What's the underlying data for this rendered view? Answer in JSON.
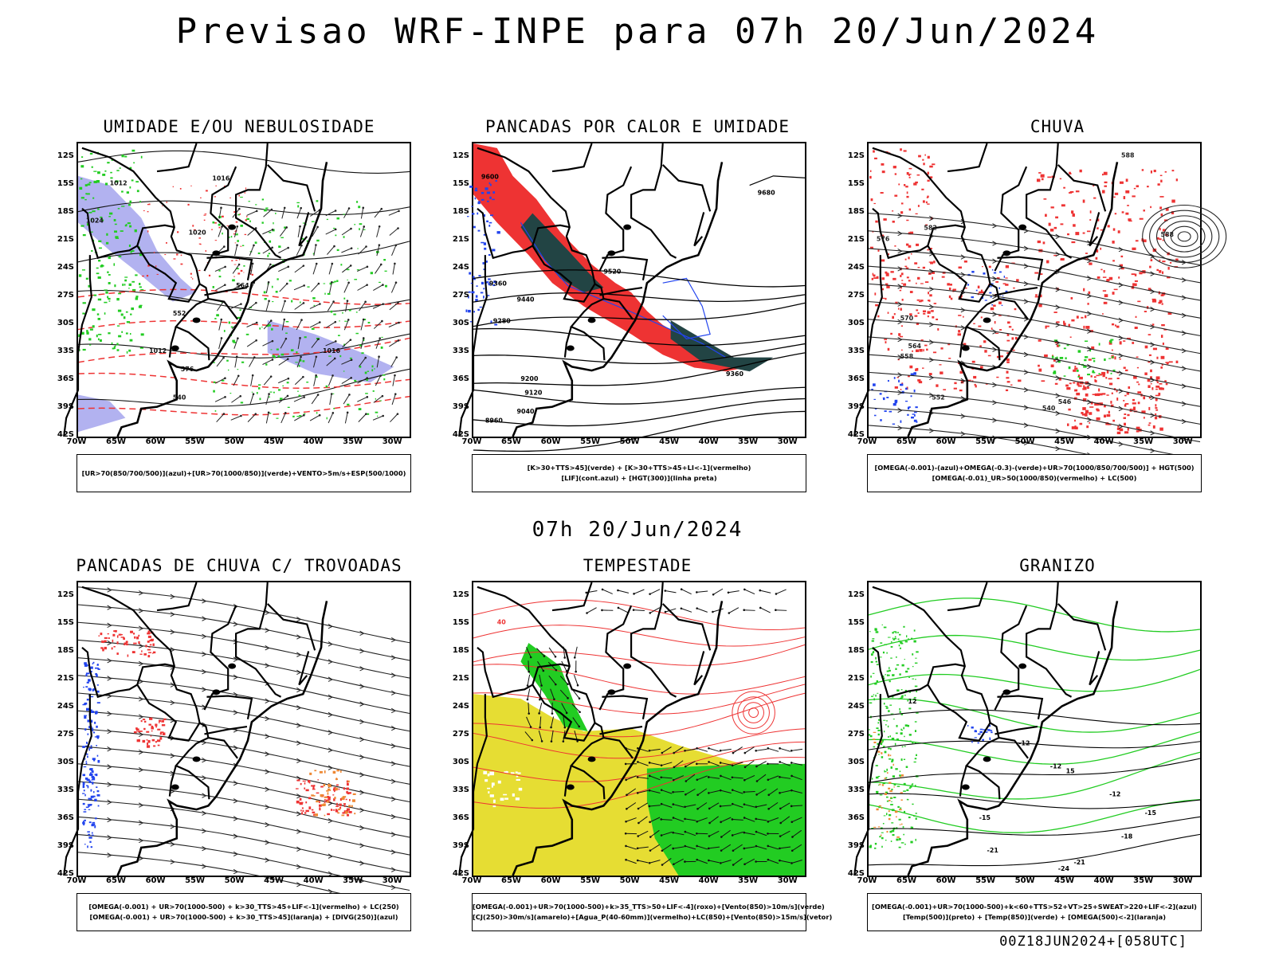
{
  "title": "Previsao WRF-INPE  para 07h 20/Jun/2024",
  "middle_date": "07h 20/Jun/2024",
  "footer": "00Z18JUN2024+[058UTC]",
  "lat_labels": [
    "12S",
    "15S",
    "18S",
    "21S",
    "24S",
    "27S",
    "30S",
    "33S",
    "36S",
    "39S",
    "42S"
  ],
  "lon_labels": [
    "70W",
    "65W",
    "60W",
    "55W",
    "50W",
    "45W",
    "40W",
    "35W",
    "30W"
  ],
  "colors": {
    "green": "#22cc22",
    "red": "#ee3333",
    "blue": "#2244ee",
    "lavender": "#aaaaee",
    "dark_teal": "#224444",
    "yellow": "#e6dd33",
    "orange": "#ee8833"
  },
  "panels": [
    {
      "title": "UMIDADE E/OU NEBULOSIDADE",
      "legend": [
        "[UR>70(850/700/500)](azul)+[UR>70(1000/850)](verde)+VENTO>5m/s+ESP(500/1000)"
      ],
      "contour_labels": [
        "1012",
        "1016",
        "1020",
        "1024",
        "552",
        "564",
        "576",
        "540"
      ]
    },
    {
      "title": "PANCADAS POR CALOR E UMIDADE",
      "legend": [
        "[K>30+TTS>45](verde) + [K>30+TTS>45+LI<-1](vermelho)",
        "[LIF](cont.azul) + [HGT(300)](linha preta)"
      ],
      "contour_labels": [
        "9680",
        "9600",
        "9520",
        "9440",
        "9360",
        "9280",
        "9200",
        "9120",
        "9040",
        "8960"
      ]
    },
    {
      "title": "CHUVA",
      "legend": [
        "[OMEGA(-0.001)-(azul)+OMEGA(-0.3)-(verde)+UR>70(1000/850/700/500)] + HGT(500)",
        "[OMEGA(-0.01)_UR>50(1000/850)(vermelho) + LC(500)"
      ],
      "contour_labels": [
        "588",
        "582",
        "576",
        "570",
        "564",
        "558",
        "552",
        "546",
        "540"
      ]
    },
    {
      "title": "PANCADAS DE CHUVA C/ TROVOADAS",
      "legend": [
        "[OMEGA(-0.001) + UR>70(1000-500) + k>30_TTS>45+LIF<-1](vermelho) + LC(250)",
        "[OMEGA(-0.001) + UR>70(1000-500) + k>30_TTS>45](laranja) + [DIVG(250)](azul)"
      ],
      "contour_labels": []
    },
    {
      "title": "TEMPESTADE",
      "legend": [
        "[OMEGA(-0.001)+UR>70(1000-500)+k>35_TTS>50+LIF<-4](roxo)+[Vento(850)>10m/s](verde)",
        "[CJ(250)>30m/s](amarelo)+[Agua_P(40-60mm)](vermelho)+LC(850)+[Vento(850)>15m/s](vetor)"
      ],
      "contour_labels": [
        "40"
      ]
    },
    {
      "title": "GRANIZO",
      "legend": [
        "[OMEGA(-0.001)+UR>70(1000-500)+k<60+TTS>52+VT>25+SWEAT>220+LIF<-2](azul)",
        "[Temp(500)](preto) + [Temp(850)](verde) + [OMEGA(500)<-2](laranja)"
      ],
      "contour_labels": [
        "-12",
        "-15",
        "-18",
        "-21",
        "-24",
        "12",
        "15"
      ]
    }
  ]
}
